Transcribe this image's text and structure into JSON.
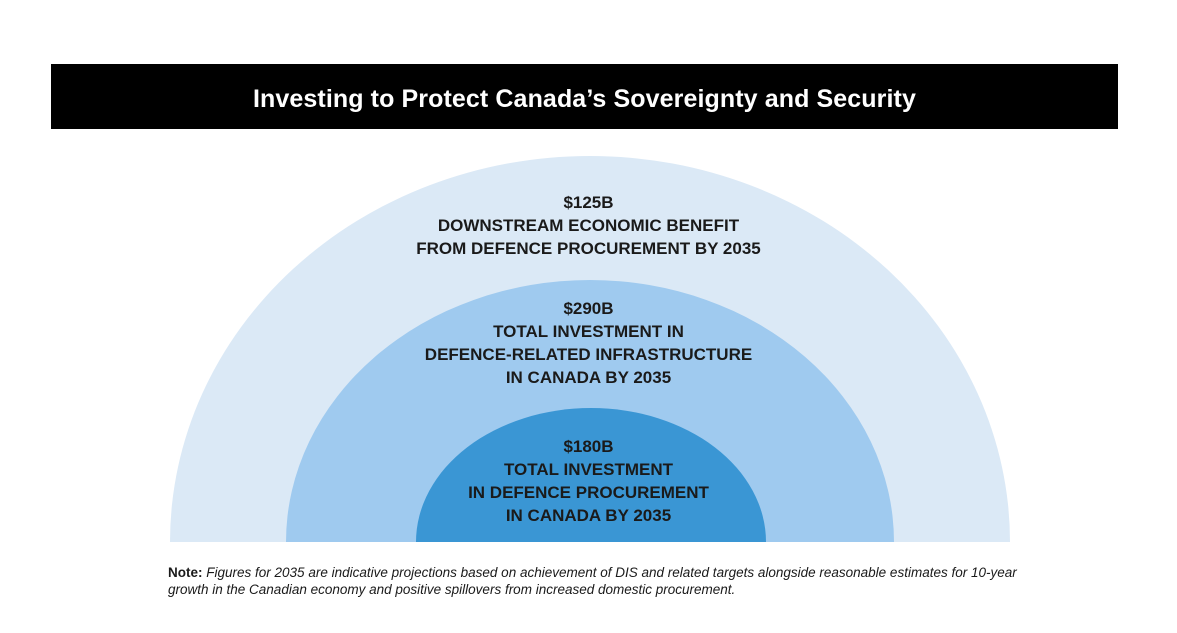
{
  "title": "Investing to Protect Canada’s Sovereignty and Security",
  "colors": {
    "outer_ring": "#dbe9f6",
    "middle_ring": "#9fcaef",
    "inner_ring": "#3a96d4",
    "title_bar": "#000000"
  },
  "rings": {
    "outer": {
      "amount": "$125B",
      "lines": [
        "DOWNSTREAM ECONOMIC BENEFIT",
        "FROM DEFENCE PROCUREMENT BY 2035"
      ]
    },
    "middle": {
      "amount": "$290B",
      "lines": [
        "TOTAL INVESTMENT IN",
        "DEFENCE-RELATED INFRASTRUCTURE",
        "IN CANADA BY 2035"
      ]
    },
    "inner": {
      "amount": "$180B",
      "lines": [
        "TOTAL INVESTMENT",
        "IN DEFENCE PROCUREMENT",
        "IN CANADA BY 2035"
      ]
    }
  },
  "note": {
    "label": "Note:",
    "text": "Figures for 2035 are indicative projections based on achievement of DIS and related targets alongside reasonable estimates for 10-year growth in the Canadian economy and positive spillovers from increased domestic procurement."
  }
}
